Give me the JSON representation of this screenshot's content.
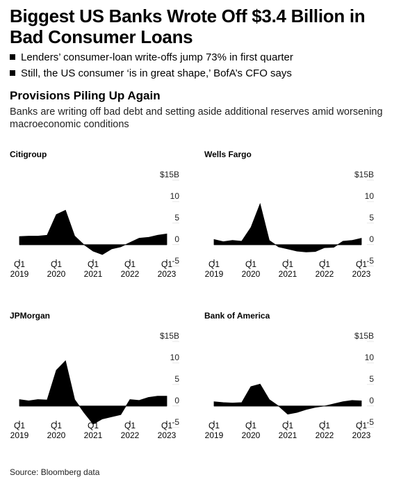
{
  "headline": "Biggest US Banks Wrote Off $3.4 Billion in Bad Consumer Loans",
  "bullets": [
    "Lenders’ consumer-loan write-offs jump 73% in first quarter",
    "Still, the US consumer ‘is in great shape,’ BofA’s CFO says"
  ],
  "chart_title": "Provisions Piling Up Again",
  "subtitle": "Banks are writing off bad debt and setting aside additional reserves amid worsening macroeconomic conditions",
  "source": "Source: Bloomberg data",
  "chart_data": [
    {
      "type": "area",
      "title": "Citigroup",
      "color": "#000000",
      "categories": [
        "Q1 2019",
        null,
        null,
        null,
        "Q1 2020",
        null,
        null,
        null,
        "Q1 2021",
        null,
        null,
        null,
        "Q1 2022",
        null,
        null,
        null,
        "Q1 2023"
      ],
      "values": [
        1.9,
        2,
        2,
        2.2,
        7,
        8,
        2,
        0,
        -1.5,
        -2.3,
        -1,
        -0.5,
        0.5,
        1.5,
        1.7,
        2.2,
        2.5
      ],
      "ylim": [
        -6,
        15
      ],
      "yticks": [
        -5,
        0,
        5,
        10,
        {
          "value": 15,
          "label": "$15B"
        }
      ]
    },
    {
      "type": "area",
      "title": "Wells Fargo",
      "color": "#000000",
      "categories": [
        "Q1 2019",
        null,
        null,
        null,
        "Q1 2020",
        null,
        null,
        null,
        "Q1 2021",
        null,
        null,
        null,
        "Q1 2022",
        null,
        null,
        null,
        "Q1 2023"
      ],
      "values": [
        1.2,
        0.7,
        1,
        0.8,
        4,
        9.5,
        1,
        -0.5,
        -1,
        -1.5,
        -1.7,
        -1.6,
        -0.7,
        -0.6,
        0.8,
        1,
        1.5
      ],
      "ylim": [
        -6,
        15
      ],
      "yticks": [
        -5,
        0,
        5,
        10,
        {
          "value": 15,
          "label": "$15B"
        }
      ]
    },
    {
      "type": "area",
      "title": "JPMorgan",
      "color": "#000000",
      "categories": [
        "Q1 2019",
        null,
        null,
        null,
        "Q1 2020",
        null,
        null,
        null,
        "Q1 2021",
        null,
        null,
        null,
        "Q1 2022",
        null,
        null,
        null,
        "Q1 2023"
      ],
      "values": [
        1.5,
        1.2,
        1.5,
        1.4,
        8.3,
        10.5,
        1.5,
        -1.5,
        -4.2,
        -3,
        -2.5,
        -2,
        1.5,
        1.3,
        2,
        2.3,
        2.3
      ],
      "ylim": [
        -6,
        15
      ],
      "yticks": [
        -5,
        0,
        5,
        10,
        {
          "value": 15,
          "label": "$15B"
        }
      ]
    },
    {
      "type": "area",
      "title": "Bank of America",
      "color": "#000000",
      "categories": [
        "Q1 2019",
        null,
        null,
        null,
        "Q1 2020",
        null,
        null,
        null,
        "Q1 2021",
        null,
        null,
        null,
        "Q1 2022",
        null,
        null,
        null,
        "Q1 2023"
      ],
      "values": [
        1,
        0.8,
        0.7,
        0.8,
        4.5,
        5.1,
        1.5,
        0,
        -1.9,
        -1.5,
        -0.8,
        -0.3,
        0,
        0.5,
        1,
        1.3,
        1.2
      ],
      "ylim": [
        -6,
        15
      ],
      "yticks": [
        -5,
        0,
        5,
        10,
        {
          "value": 15,
          "label": "$15B"
        }
      ]
    }
  ]
}
